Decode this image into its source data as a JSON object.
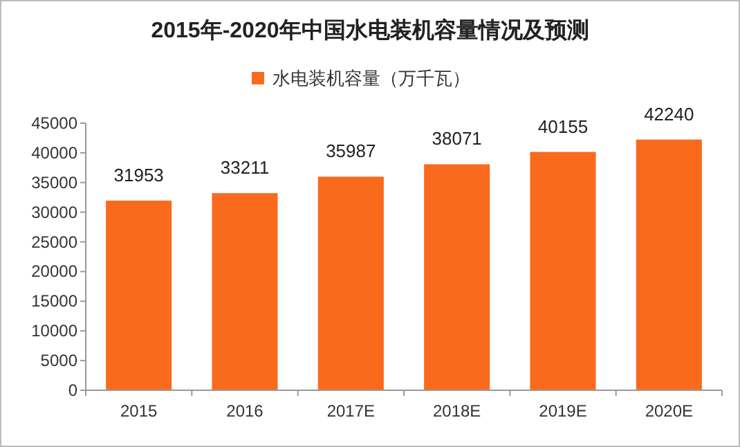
{
  "chart_data": {
    "type": "bar",
    "title": "2015年-2020年中国水电装机容量情况及预测",
    "categories": [
      "2015",
      "2016",
      "2017E",
      "2018E",
      "2019E",
      "2020E"
    ],
    "series": [
      {
        "name": "水电装机容量（万千瓦）",
        "color": "#fa6a1c",
        "values": [
          31953,
          33211,
          35987,
          38071,
          40155,
          42240
        ]
      }
    ],
    "ylim": [
      0,
      45000
    ],
    "yticks": [
      0,
      5000,
      10000,
      15000,
      20000,
      25000,
      30000,
      35000,
      40000,
      45000
    ],
    "data_labels": true,
    "legend": "top",
    "grid": false
  }
}
